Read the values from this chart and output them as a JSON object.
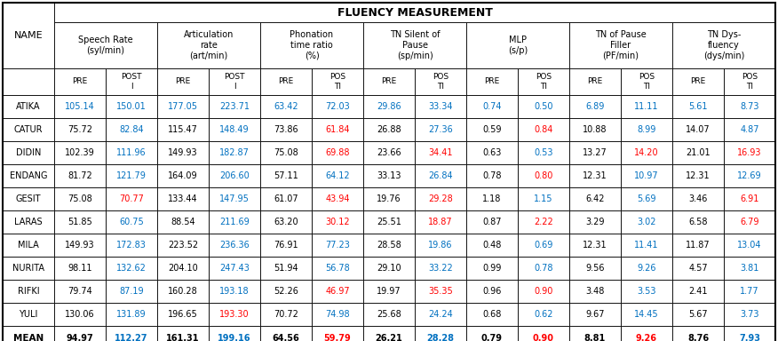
{
  "title": "FLUENCY MEASUREMENT",
  "col_groups": [
    {
      "label": "Speech Rate\n(syl/min)",
      "span": 2
    },
    {
      "label": "Articulation\nrate\n(art/min)",
      "span": 2
    },
    {
      "label": "Phonation\ntime ratio\n(%)",
      "span": 2
    },
    {
      "label": "TN Silent of\nPause\n(sp/min)",
      "span": 2
    },
    {
      "label": "MLP\n(s/p)",
      "span": 2
    },
    {
      "label": "TN of Pause\nFiller\n(PF/min)",
      "span": 2
    },
    {
      "label": "TN Dys-\nfluency\n(dys/min)",
      "span": 2
    }
  ],
  "sub_headers": [
    "PRE",
    "POST\nI",
    "PRE",
    "POST\nI",
    "PRE",
    "POS\nTI",
    "PRE",
    "POS\nTI",
    "PRE",
    "POS\nTI",
    "PRE",
    "POS\nTI",
    "PRE",
    "POS\nTI"
  ],
  "names": [
    "ATIKA",
    "CATUR",
    "DIDIN",
    "ENDANG",
    "GESIT",
    "LARAS",
    "MILA",
    "NURITA",
    "RIFKI",
    "YULI",
    "MEAN"
  ],
  "data_str_formatted": [
    [
      "105.14",
      "150.01",
      "177.05",
      "223.71",
      "63.42",
      "72.03",
      "29.86",
      "33.34",
      "0.74",
      "0.50",
      "6.89",
      "11.11",
      "5.61",
      "8.73"
    ],
    [
      "75.72",
      "82.84",
      "115.47",
      "148.49",
      "73.86",
      "61.84",
      "26.88",
      "27.36",
      "0.59",
      "0.84",
      "10.88",
      "8.99",
      "14.07",
      "4.87"
    ],
    [
      "102.39",
      "111.96",
      "149.93",
      "182.87",
      "75.08",
      "69.88",
      "23.66",
      "34.41",
      "0.63",
      "0.53",
      "13.27",
      "14.20",
      "21.01",
      "16.93"
    ],
    [
      "81.72",
      "121.79",
      "164.09",
      "206.60",
      "57.11",
      "64.12",
      "33.13",
      "26.84",
      "0.78",
      "0.80",
      "12.31",
      "10.97",
      "12.31",
      "12.69"
    ],
    [
      "75.08",
      "70.77",
      "133.44",
      "147.95",
      "61.07",
      "43.94",
      "19.76",
      "29.28",
      "1.18",
      "1.15",
      "6.42",
      "5.69",
      "3.46",
      "6.91"
    ],
    [
      "51.85",
      "60.75",
      "88.54",
      "211.69",
      "63.20",
      "30.12",
      "25.51",
      "18.87",
      "0.87",
      "2.22",
      "3.29",
      "3.02",
      "6.58",
      "6.79"
    ],
    [
      "149.93",
      "172.83",
      "223.52",
      "236.36",
      "76.91",
      "77.23",
      "28.58",
      "19.86",
      "0.48",
      "0.69",
      "12.31",
      "11.41",
      "11.87",
      "13.04"
    ],
    [
      "98.11",
      "132.62",
      "204.10",
      "247.43",
      "51.94",
      "56.78",
      "29.10",
      "33.22",
      "0.99",
      "0.78",
      "9.56",
      "9.26",
      "4.57",
      "3.81"
    ],
    [
      "79.74",
      "87.19",
      "160.28",
      "193.18",
      "52.26",
      "46.97",
      "19.97",
      "35.35",
      "0.96",
      "0.90",
      "3.48",
      "3.53",
      "2.41",
      "1.77"
    ],
    [
      "130.06",
      "131.89",
      "196.65",
      "193.30",
      "70.72",
      "74.98",
      "25.68",
      "24.24",
      "0.68",
      "0.62",
      "9.67",
      "14.45",
      "5.67",
      "3.73"
    ],
    [
      "94.97",
      "112.27",
      "161.31",
      "199.16",
      "64.56",
      "59.79",
      "26.21",
      "28.28",
      "0.79",
      "0.90",
      "8.81",
      "9.26",
      "8.76",
      "7.93"
    ]
  ],
  "cell_colors": [
    [
      "#0070C0",
      "#0070C0",
      "#0070C0",
      "#0070C0",
      "#0070C0",
      "#0070C0",
      "#0070C0",
      "#0070C0",
      "#0070C0",
      "#0070C0",
      "#0070C0",
      "#0070C0",
      "#0070C0",
      "#0070C0"
    ],
    [
      "#000000",
      "#0070C0",
      "#000000",
      "#0070C0",
      "#000000",
      "#FF0000",
      "#000000",
      "#0070C0",
      "#000000",
      "#FF0000",
      "#000000",
      "#0070C0",
      "#000000",
      "#0070C0"
    ],
    [
      "#000000",
      "#0070C0",
      "#000000",
      "#0070C0",
      "#000000",
      "#FF0000",
      "#000000",
      "#FF0000",
      "#000000",
      "#0070C0",
      "#000000",
      "#FF0000",
      "#000000",
      "#FF0000"
    ],
    [
      "#000000",
      "#0070C0",
      "#000000",
      "#0070C0",
      "#000000",
      "#0070C0",
      "#000000",
      "#0070C0",
      "#000000",
      "#FF0000",
      "#000000",
      "#0070C0",
      "#000000",
      "#0070C0"
    ],
    [
      "#000000",
      "#FF0000",
      "#000000",
      "#0070C0",
      "#000000",
      "#FF0000",
      "#000000",
      "#FF0000",
      "#000000",
      "#0070C0",
      "#000000",
      "#0070C0",
      "#000000",
      "#FF0000"
    ],
    [
      "#000000",
      "#0070C0",
      "#000000",
      "#0070C0",
      "#000000",
      "#FF0000",
      "#000000",
      "#FF0000",
      "#000000",
      "#FF0000",
      "#000000",
      "#0070C0",
      "#000000",
      "#FF0000"
    ],
    [
      "#000000",
      "#0070C0",
      "#000000",
      "#0070C0",
      "#000000",
      "#0070C0",
      "#000000",
      "#0070C0",
      "#000000",
      "#0070C0",
      "#000000",
      "#0070C0",
      "#000000",
      "#0070C0"
    ],
    [
      "#000000",
      "#0070C0",
      "#000000",
      "#0070C0",
      "#000000",
      "#0070C0",
      "#000000",
      "#0070C0",
      "#000000",
      "#0070C0",
      "#000000",
      "#0070C0",
      "#000000",
      "#0070C0"
    ],
    [
      "#000000",
      "#0070C0",
      "#000000",
      "#0070C0",
      "#000000",
      "#FF0000",
      "#000000",
      "#FF0000",
      "#000000",
      "#FF0000",
      "#000000",
      "#0070C0",
      "#000000",
      "#0070C0"
    ],
    [
      "#000000",
      "#0070C0",
      "#000000",
      "#FF0000",
      "#000000",
      "#0070C0",
      "#000000",
      "#0070C0",
      "#000000",
      "#0070C0",
      "#000000",
      "#0070C0",
      "#000000",
      "#0070C0"
    ],
    [
      "#000000",
      "#0070C0",
      "#000000",
      "#0070C0",
      "#000000",
      "#FF0000",
      "#000000",
      "#0070C0",
      "#000000",
      "#FF0000",
      "#000000",
      "#FF0000",
      "#000000",
      "#0070C0"
    ]
  ],
  "fig_w": 8.76,
  "fig_h": 3.84,
  "dpi": 100
}
